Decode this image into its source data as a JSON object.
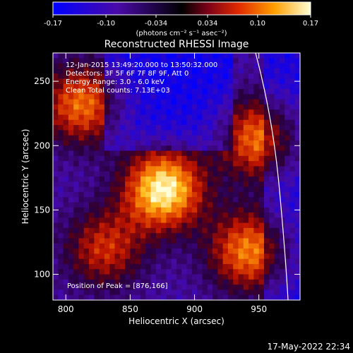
{
  "colorbar": {
    "ticks": [
      "-0.17",
      "-0.10",
      "-0.034",
      "0.034",
      "0.10",
      "0.17"
    ],
    "units": "(photons cm⁻² s⁻¹ asec⁻²)",
    "range": [
      -0.17,
      0.17
    ]
  },
  "chart_data": {
    "type": "heatmap",
    "title": "Reconstructed RHESSI Image",
    "xlabel": "Heliocentric X (arcsec)",
    "ylabel": "Heliocentric Y (arcsec)",
    "xlim": [
      790,
      982
    ],
    "ylim": [
      80,
      272
    ],
    "xticks": [
      "800",
      "850",
      "900",
      "950"
    ],
    "xtick_values": [
      800,
      850,
      900,
      950
    ],
    "yticks": [
      "100",
      "150",
      "200",
      "250"
    ],
    "ytick_values": [
      100,
      150,
      200,
      250
    ],
    "annotations": [
      "12-Jan-2015 13:49:20.000 to 13:50:32.000",
      "Detectors: 3F 5F 6F 7F 8F 9F, Att 0",
      "Energy Range: 3.0 - 6.0 keV",
      "Clean     Total counts: 7.13E+03"
    ],
    "peak_label": "Position of Peak = [876,166]",
    "peak": [
      876,
      166
    ],
    "sources": [
      {
        "x": 876,
        "y": 166,
        "value": 0.17
      },
      {
        "x": 942,
        "y": 118,
        "value": 0.1
      },
      {
        "x": 812,
        "y": 232,
        "value": 0.09
      },
      {
        "x": 950,
        "y": 205,
        "value": 0.09
      },
      {
        "x": 830,
        "y": 120,
        "value": 0.05
      }
    ]
  },
  "timestamp": "17-May-2022 22:34"
}
